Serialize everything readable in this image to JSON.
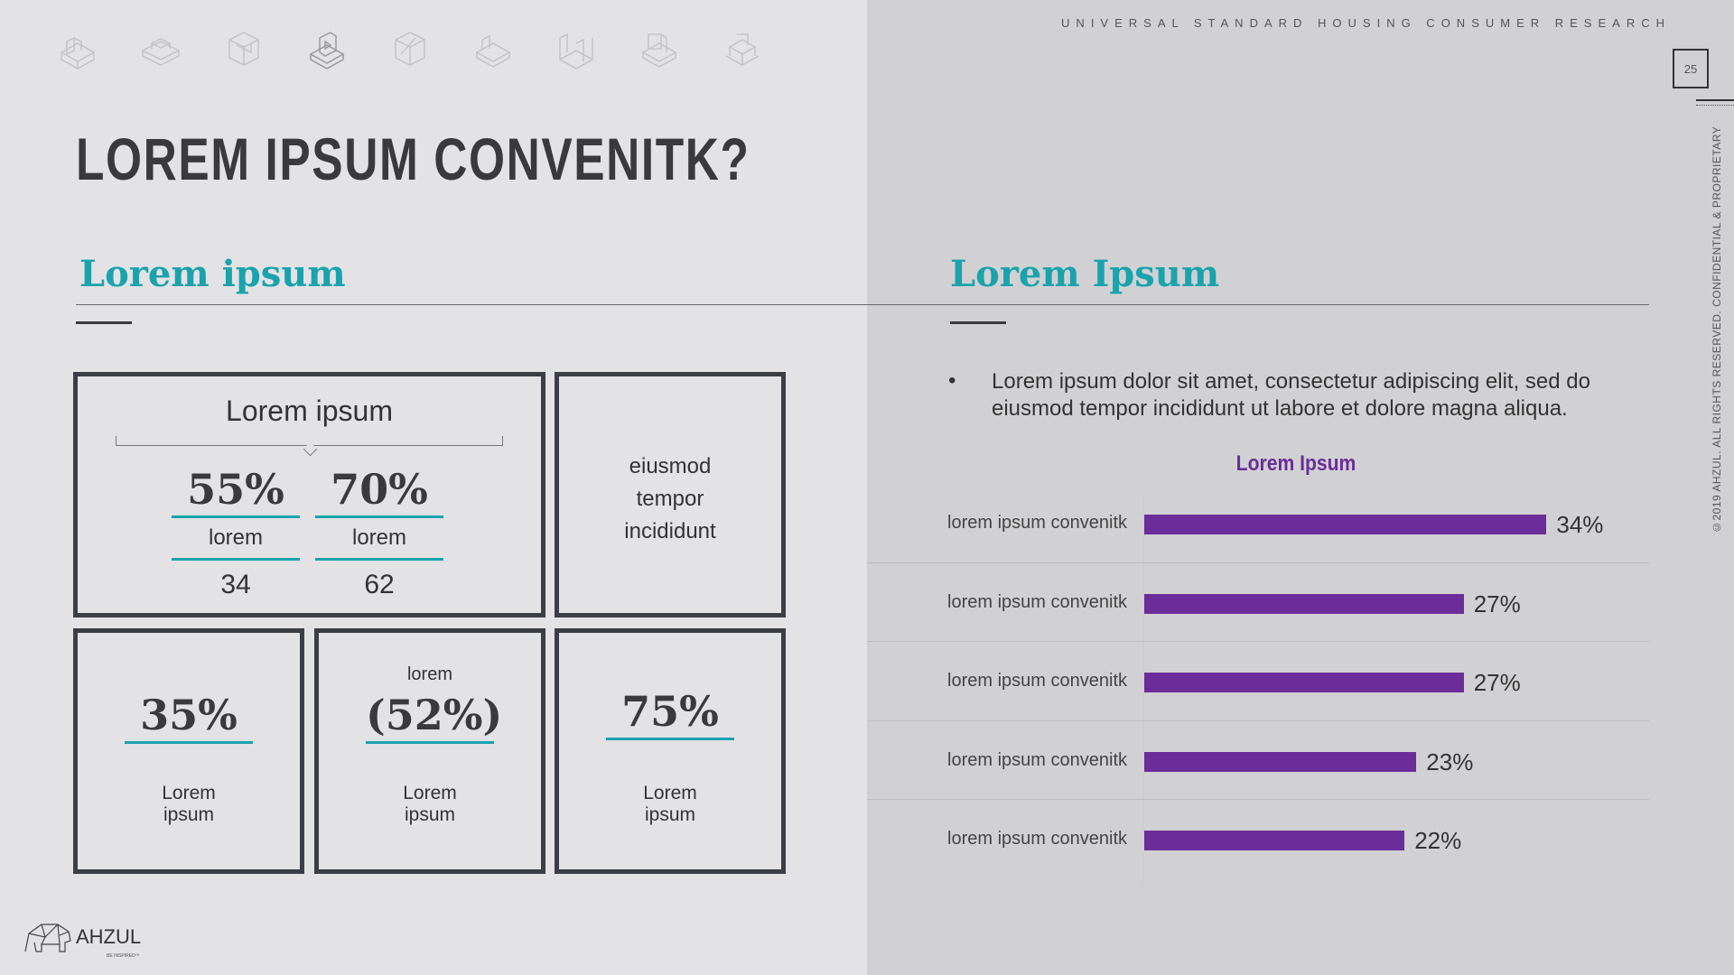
{
  "header": {
    "research_title": "UNIVERSAL STANDARD HOUSING CONSUMER RESEARCH",
    "page_number": "25",
    "copyright": "©2019 AHZUL. ALL RIGHTS RESERVED. CONFIDENTIAL & PROPRIETARY"
  },
  "main_title": "LOREM IPSUM CONVENITK?",
  "left": {
    "section_title": "Lorem ipsum",
    "box1": {
      "title": "Lorem ipsum",
      "stat_a": {
        "value": "55%",
        "label": "lorem",
        "count": "34"
      },
      "stat_b": {
        "value": "70%",
        "label": "lorem",
        "count": "62"
      }
    },
    "box2": {
      "line1": "eiusmod",
      "line2": "tempor",
      "line3": "incididunt"
    },
    "box3": {
      "value": "35%",
      "line1": "Lorem",
      "line2": "ipsum"
    },
    "box4": {
      "top": "lorem",
      "value": "(52%)",
      "line1": "Lorem",
      "line2": "ipsum"
    },
    "box5": {
      "value": "75%",
      "line1": "Lorem",
      "line2": "ipsum"
    }
  },
  "right": {
    "section_title": "Lorem Ipsum",
    "bullet": "Lorem ipsum dolor sit amet, consectetur adipiscing elit, sed do eiusmod tempor incididunt ut labore et dolore magna aliqua."
  },
  "chart_data": {
    "type": "bar",
    "orientation": "horizontal",
    "title": "Lorem Ipsum",
    "categories": [
      "lorem ipsum convenitk",
      "lorem ipsum convenitk",
      "lorem ipsum convenitk",
      "lorem ipsum convenitk",
      "lorem ipsum convenitk"
    ],
    "values": [
      34,
      27,
      27,
      23,
      22
    ],
    "value_labels": [
      "34%",
      "27%",
      "27%",
      "23%",
      "22%"
    ],
    "xlim": [
      0,
      40
    ],
    "bar_color": "#6b2d9a",
    "grid": false,
    "legend": "none"
  },
  "logo": {
    "name": "AHZUL",
    "tagline": "BE INSPIRED™"
  },
  "icons": [
    "iso-shape-1-icon",
    "iso-shape-2-icon",
    "iso-shape-3-icon",
    "iso-shape-4-icon",
    "iso-shape-5-icon",
    "iso-shape-6-icon",
    "iso-shape-7-icon",
    "iso-shape-8-icon",
    "iso-shape-9-icon"
  ],
  "colors": {
    "accent": "#1aa3ad",
    "chart": "#6b2d9a",
    "text": "#3a3a3d"
  }
}
